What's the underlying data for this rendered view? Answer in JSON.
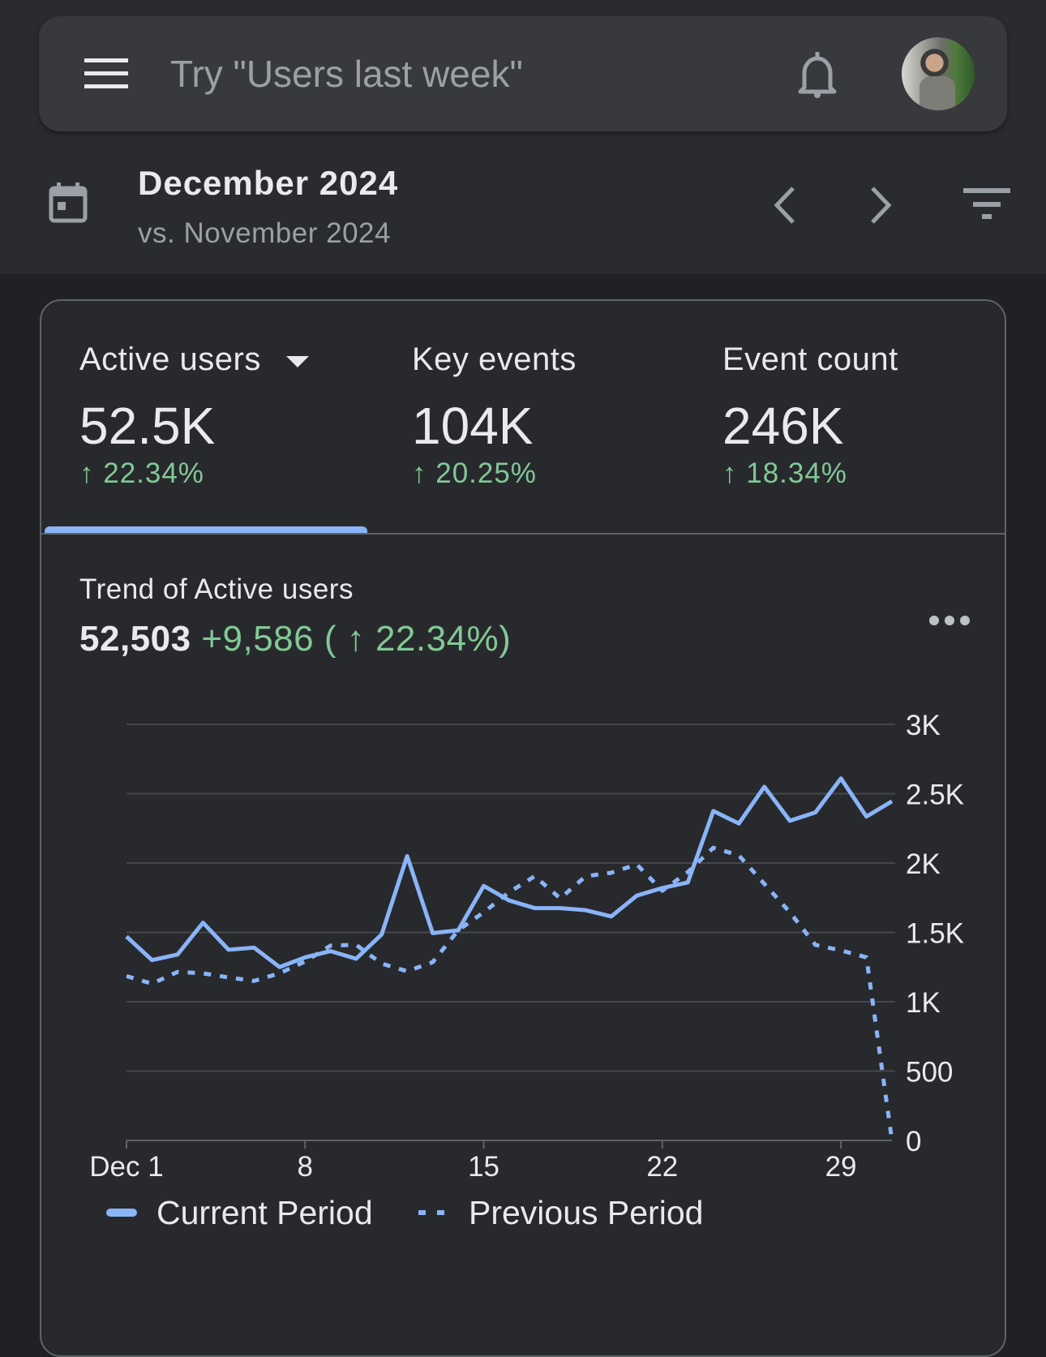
{
  "search": {
    "placeholder": "Try \"Users last week\"",
    "menu_icon": "menu-icon",
    "bell_icon": "bell-icon"
  },
  "date": {
    "title": "December 2024",
    "comparison": "vs. November 2024",
    "calendar_icon": "calendar-icon"
  },
  "metrics": [
    {
      "label": "Active users",
      "value": "52.5K",
      "change": "↑ 22.34%",
      "selected": true
    },
    {
      "label": "Key events",
      "value": "104K",
      "change": "↑ 20.25%"
    },
    {
      "label": "Event count",
      "value": "246K",
      "change": "↑ 18.34%"
    }
  ],
  "trend": {
    "title": "Trend of Active users",
    "total": "52,503",
    "delta": "+9,586 ( ↑ 22.34%)"
  },
  "colors": {
    "accent": "#8ab4f8",
    "positive": "#81c995",
    "background": "#28292d"
  },
  "chart_data": {
    "type": "line",
    "x": [
      1,
      2,
      3,
      4,
      5,
      6,
      7,
      8,
      9,
      10,
      11,
      12,
      13,
      14,
      15,
      16,
      17,
      18,
      19,
      20,
      21,
      22,
      23,
      24,
      25,
      26,
      27,
      28,
      29,
      30,
      31
    ],
    "xticks": [
      1,
      8,
      15,
      22,
      29
    ],
    "xtick_labels": [
      "Dec 1",
      "8",
      "15",
      "22",
      "29"
    ],
    "ylim": [
      0,
      3000
    ],
    "yticks": [
      0,
      500,
      1000,
      1500,
      2000,
      2500,
      3000
    ],
    "ytick_labels": [
      "0",
      "500",
      "1K",
      "1.5K",
      "2K",
      "2.5K",
      "3K"
    ],
    "y_axis_side": "right",
    "grid": true,
    "legend_placement": "bottom",
    "series": [
      {
        "name": "Current Period",
        "style": "solid",
        "values": [
          1470,
          1300,
          1340,
          1570,
          1375,
          1390,
          1250,
          1320,
          1365,
          1310,
          1485,
          2050,
          1495,
          1515,
          1835,
          1730,
          1675,
          1675,
          1660,
          1615,
          1765,
          1820,
          1860,
          2375,
          2285,
          2550,
          2305,
          2365,
          2610,
          2335,
          2445
        ]
      },
      {
        "name": "Previous Period",
        "style": "dotted",
        "values": [
          1185,
          1130,
          1215,
          1205,
          1175,
          1150,
          1205,
          1290,
          1405,
          1410,
          1275,
          1220,
          1285,
          1515,
          1645,
          1790,
          1905,
          1745,
          1905,
          1930,
          1990,
          1800,
          1935,
          2110,
          2055,
          1850,
          1645,
          1410,
          1370,
          1320,
          0
        ]
      }
    ]
  }
}
